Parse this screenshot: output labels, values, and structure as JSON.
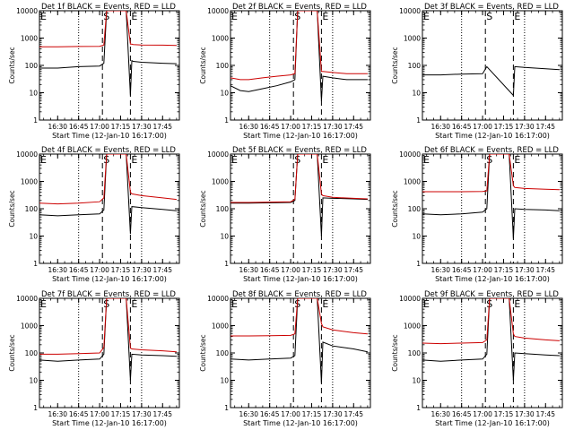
{
  "chart_data": [
    {
      "type": "line",
      "title": "Det 1f BLACK = Events, RED = LLD",
      "ylabel": "Counts/sec",
      "xlabel": "Start Time (12-Jan-10 16:17:00)",
      "xticks": [
        "16:30",
        "16:45",
        "17:00",
        "17:15",
        "17:30",
        "17:45"
      ],
      "yticks": [
        "1",
        "10",
        "100",
        "1000",
        "10000"
      ],
      "ylim": [
        1,
        10000
      ],
      "y_scale": "log",
      "grid": "dotted vertical at 16:45 and 17:30",
      "markers": [
        {
          "label": "E",
          "x": "16:17"
        },
        {
          "label": "S",
          "x": "17:02"
        },
        {
          "label": "E",
          "x": "17:22"
        }
      ],
      "series": [
        {
          "color": "#000000",
          "x": [
            "16:17",
            "16:30",
            "16:45",
            "17:00",
            "17:03",
            "17:05",
            "17:15",
            "17:19",
            "17:22",
            "17:23",
            "17:24",
            "17:30",
            "17:45",
            "17:55"
          ],
          "values": [
            80,
            80,
            90,
            95,
            120,
            10000,
            10000,
            10000,
            8,
            150,
            140,
            130,
            120,
            115
          ]
        },
        {
          "color": "#cc0000",
          "x": [
            "16:17",
            "16:30",
            "16:45",
            "17:00",
            "17:03",
            "17:05",
            "17:15",
            "17:19",
            "17:22",
            "17:23",
            "17:24",
            "17:30",
            "17:45",
            "17:55"
          ],
          "values": [
            480,
            480,
            490,
            500,
            560,
            10000,
            10000,
            10000,
            600,
            600,
            580,
            560,
            550,
            540
          ]
        }
      ]
    },
    {
      "type": "line",
      "title": "Det 2f BLACK = Events, RED = LLD",
      "ylabel": "Counts/sec",
      "xlabel": "Start Time (12-Jan-10 16:17:00)",
      "xticks": [
        "16:30",
        "16:45",
        "17:00",
        "17:15",
        "17:30",
        "17:45"
      ],
      "yticks": [
        "1",
        "10",
        "100",
        "1000",
        "10000"
      ],
      "ylim": [
        1,
        10000
      ],
      "y_scale": "log",
      "grid": "dotted vertical at 16:45 and 17:30",
      "markers": [
        {
          "label": "E",
          "x": "16:17"
        },
        {
          "label": "S",
          "x": "17:02"
        },
        {
          "label": "E",
          "x": "17:22"
        }
      ],
      "series": [
        {
          "color": "#000000",
          "x": [
            "16:17",
            "16:24",
            "16:30",
            "16:40",
            "16:50",
            "17:00",
            "17:03",
            "17:05",
            "17:15",
            "17:19",
            "17:22",
            "17:23",
            "17:30",
            "17:40",
            "17:55"
          ],
          "values": [
            18,
            12,
            11,
            14,
            18,
            25,
            30,
            10000,
            10000,
            10000,
            5,
            40,
            35,
            30,
            30
          ]
        },
        {
          "color": "#cc0000",
          "x": [
            "16:17",
            "16:24",
            "16:30",
            "16:40",
            "16:50",
            "17:00",
            "17:03",
            "17:05",
            "17:15",
            "17:19",
            "17:22",
            "17:23",
            "17:30",
            "17:40",
            "17:55"
          ],
          "values": [
            35,
            30,
            30,
            35,
            40,
            45,
            50,
            10000,
            10000,
            10000,
            60,
            60,
            55,
            50,
            50
          ]
        }
      ]
    },
    {
      "type": "line",
      "title": "Det 3f BLACK = Events, RED = LLD",
      "ylabel": "Counts/sec",
      "xlabel": "Start Time (12-Jan-10 16:17:00)",
      "xticks": [
        "16:30",
        "16:45",
        "17:00",
        "17:15",
        "17:30",
        "17:45"
      ],
      "yticks": [
        "1",
        "10",
        "100",
        "1000",
        "10000"
      ],
      "ylim": [
        1,
        10000
      ],
      "y_scale": "log",
      "grid": "dotted vertical at 16:45 and 17:30",
      "markers": [
        {
          "label": "E",
          "x": "16:17"
        },
        {
          "label": "S",
          "x": "17:02"
        },
        {
          "label": "E",
          "x": "17:22"
        }
      ],
      "series": [
        {
          "color": "#000000",
          "x": [
            "16:17",
            "16:30",
            "16:45",
            "17:00",
            "17:03",
            "17:22",
            "17:23",
            "17:30",
            "17:45",
            "17:55"
          ],
          "values": [
            45,
            45,
            48,
            50,
            90,
            8,
            90,
            85,
            75,
            70
          ]
        }
      ]
    },
    {
      "type": "line",
      "title": "Det 4f BLACK = Events, RED = LLD",
      "ylabel": "Counts/sec",
      "xlabel": "Start Time (12-Jan-10 16:17:00)",
      "xticks": [
        "16:30",
        "16:45",
        "17:00",
        "17:15",
        "17:30",
        "17:45"
      ],
      "yticks": [
        "1",
        "10",
        "100",
        "1000",
        "10000"
      ],
      "ylim": [
        1,
        10000
      ],
      "y_scale": "log",
      "grid": "dotted vertical at 16:45 and 17:30",
      "markers": [
        {
          "label": "E",
          "x": "16:17"
        },
        {
          "label": "S",
          "x": "17:02"
        },
        {
          "label": "E",
          "x": "17:22"
        }
      ],
      "series": [
        {
          "color": "#000000",
          "x": [
            "16:17",
            "16:30",
            "16:45",
            "17:00",
            "17:03",
            "17:05",
            "17:15",
            "17:19",
            "17:22",
            "17:23",
            "17:30",
            "17:45",
            "17:55"
          ],
          "values": [
            60,
            55,
            60,
            65,
            90,
            10000,
            10000,
            10000,
            12,
            120,
            110,
            95,
            85
          ]
        },
        {
          "color": "#cc0000",
          "x": [
            "16:17",
            "16:30",
            "16:45",
            "17:00",
            "17:03",
            "17:05",
            "17:15",
            "17:19",
            "17:22",
            "17:23",
            "17:30",
            "17:45",
            "17:55"
          ],
          "values": [
            160,
            150,
            160,
            180,
            250,
            10000,
            10000,
            10000,
            400,
            350,
            300,
            250,
            220
          ]
        }
      ]
    },
    {
      "type": "line",
      "title": "Det 5f BLACK = Events, RED = LLD",
      "ylabel": "Counts/sec",
      "xlabel": "Start Time (12-Jan-10 16:17:00)",
      "xticks": [
        "16:30",
        "16:45",
        "17:00",
        "17:15",
        "17:30",
        "17:45"
      ],
      "yticks": [
        "1",
        "10",
        "100",
        "1000",
        "10000"
      ],
      "ylim": [
        1,
        10000
      ],
      "y_scale": "log",
      "grid": "dotted vertical at 16:45 and 17:30",
      "markers": [
        {
          "label": "E",
          "x": "16:17"
        },
        {
          "label": "S",
          "x": "17:02"
        },
        {
          "label": "E",
          "x": "17:22"
        }
      ],
      "series": [
        {
          "color": "#000000",
          "x": [
            "16:17",
            "16:30",
            "16:45",
            "17:00",
            "17:03",
            "17:05",
            "17:15",
            "17:19",
            "17:22",
            "17:23",
            "17:30",
            "17:45",
            "17:55"
          ],
          "values": [
            160,
            160,
            165,
            170,
            200,
            10000,
            10000,
            10000,
            10,
            250,
            240,
            230,
            220
          ]
        },
        {
          "color": "#cc0000",
          "x": [
            "16:17",
            "16:30",
            "16:45",
            "17:00",
            "17:03",
            "17:05",
            "17:15",
            "17:19",
            "17:22",
            "17:23",
            "17:30",
            "17:45",
            "17:55"
          ],
          "values": [
            170,
            170,
            175,
            180,
            220,
            10000,
            10000,
            10000,
            350,
            300,
            260,
            240,
            230
          ]
        }
      ]
    },
    {
      "type": "line",
      "title": "Det 6f BLACK = Events, RED = LLD",
      "ylabel": "Counts/sec",
      "xlabel": "Start Time (12-Jan-10 16:17:00)",
      "xticks": [
        "16:30",
        "16:45",
        "17:00",
        "17:15",
        "17:30",
        "17:45"
      ],
      "yticks": [
        "1",
        "10",
        "100",
        "1000",
        "10000"
      ],
      "ylim": [
        1,
        10000
      ],
      "y_scale": "log",
      "grid": "dotted vertical at 16:45 and 17:30",
      "markers": [
        {
          "label": "E",
          "x": "16:17"
        },
        {
          "label": "S",
          "x": "17:02"
        },
        {
          "label": "E",
          "x": "17:22"
        }
      ],
      "series": [
        {
          "color": "#000000",
          "x": [
            "16:17",
            "16:30",
            "16:45",
            "17:00",
            "17:03",
            "17:05",
            "17:15",
            "17:19",
            "17:22",
            "17:23",
            "17:30",
            "17:45",
            "17:55"
          ],
          "values": [
            65,
            60,
            65,
            75,
            100,
            10000,
            10000,
            10000,
            8,
            100,
            95,
            90,
            85
          ]
        },
        {
          "color": "#cc0000",
          "x": [
            "16:17",
            "16:30",
            "16:45",
            "17:00",
            "17:03",
            "17:05",
            "17:15",
            "17:19",
            "17:22",
            "17:23",
            "17:30",
            "17:45",
            "17:55"
          ],
          "values": [
            420,
            420,
            420,
            430,
            450,
            10000,
            10000,
            10000,
            700,
            600,
            550,
            520,
            500
          ]
        }
      ]
    },
    {
      "type": "line",
      "title": "Det 7f BLACK = Events, RED = LLD",
      "ylabel": "Counts/sec",
      "xlabel": "Start Time (12-Jan-10 16:17:00)",
      "xticks": [
        "16:30",
        "16:45",
        "17:00",
        "17:15",
        "17:30",
        "17:45"
      ],
      "yticks": [
        "1",
        "10",
        "100",
        "1000",
        "10000"
      ],
      "ylim": [
        1,
        10000
      ],
      "y_scale": "log",
      "grid": "dotted vertical at 16:45 and 17:30",
      "markers": [
        {
          "label": "E",
          "x": "16:17"
        },
        {
          "label": "S",
          "x": "17:02"
        },
        {
          "label": "E",
          "x": "17:22"
        }
      ],
      "series": [
        {
          "color": "#000000",
          "x": [
            "16:17",
            "16:30",
            "16:45",
            "17:00",
            "17:03",
            "17:05",
            "17:15",
            "17:19",
            "17:22",
            "17:23",
            "17:30",
            "17:45",
            "17:55"
          ],
          "values": [
            55,
            50,
            55,
            60,
            90,
            10000,
            10000,
            10000,
            10,
            90,
            85,
            80,
            75
          ]
        },
        {
          "color": "#cc0000",
          "x": [
            "16:17",
            "16:30",
            "16:45",
            "17:00",
            "17:03",
            "17:05",
            "17:15",
            "17:19",
            "17:22",
            "17:23",
            "17:30",
            "17:45",
            "17:55"
          ],
          "values": [
            90,
            90,
            95,
            100,
            160,
            10000,
            10000,
            10000,
            150,
            140,
            130,
            120,
            110
          ]
        }
      ]
    },
    {
      "type": "line",
      "title": "Det 8f BLACK = Events, RED = LLD",
      "ylabel": "Counts/sec",
      "xlabel": "Start Time (12-Jan-10 16:17:00)",
      "xticks": [
        "16:30",
        "16:45",
        "17:00",
        "17:15",
        "17:30",
        "17:45"
      ],
      "yticks": [
        "1",
        "10",
        "100",
        "1000",
        "10000"
      ],
      "ylim": [
        1,
        10000
      ],
      "y_scale": "log",
      "grid": "dotted vertical at 16:45 and 17:30",
      "markers": [
        {
          "label": "E",
          "x": "16:17"
        },
        {
          "label": "S",
          "x": "17:02"
        },
        {
          "label": "E",
          "x": "17:22"
        }
      ],
      "series": [
        {
          "color": "#000000",
          "x": [
            "16:17",
            "16:30",
            "16:45",
            "17:00",
            "17:03",
            "17:05",
            "17:15",
            "17:19",
            "17:22",
            "17:23",
            "17:30",
            "17:45",
            "17:55"
          ],
          "values": [
            60,
            55,
            60,
            65,
            80,
            10000,
            10000,
            10000,
            8,
            250,
            180,
            140,
            110
          ]
        },
        {
          "color": "#cc0000",
          "x": [
            "16:17",
            "16:30",
            "16:45",
            "17:00",
            "17:03",
            "17:05",
            "17:15",
            "17:19",
            "17:22",
            "17:23",
            "17:30",
            "17:45",
            "17:55"
          ],
          "values": [
            420,
            420,
            430,
            440,
            500,
            10000,
            10000,
            10000,
            1200,
            900,
            700,
            550,
            500
          ]
        }
      ]
    },
    {
      "type": "line",
      "title": "Det 9f BLACK = Events, RED = LLD",
      "ylabel": "Counts/sec",
      "xlabel": "Start Time (12-Jan-10 16:17:00)",
      "xticks": [
        "16:30",
        "16:45",
        "17:00",
        "17:15",
        "17:30",
        "17:45"
      ],
      "yticks": [
        "1",
        "10",
        "100",
        "1000",
        "10000"
      ],
      "ylim": [
        1,
        10000
      ],
      "y_scale": "log",
      "grid": "dotted vertical at 16:45 and 17:30",
      "markers": [
        {
          "label": "E",
          "x": "16:17"
        },
        {
          "label": "S",
          "x": "17:02"
        },
        {
          "label": "E",
          "x": "17:22"
        }
      ],
      "series": [
        {
          "color": "#000000",
          "x": [
            "16:17",
            "16:30",
            "16:45",
            "17:00",
            "17:03",
            "17:05",
            "17:15",
            "17:19",
            "17:22",
            "17:23",
            "17:30",
            "17:45",
            "17:55"
          ],
          "values": [
            55,
            50,
            55,
            60,
            90,
            10000,
            10000,
            10000,
            10,
            100,
            95,
            85,
            80
          ]
        },
        {
          "color": "#cc0000",
          "x": [
            "16:17",
            "16:30",
            "16:45",
            "17:00",
            "17:03",
            "17:05",
            "17:15",
            "17:19",
            "17:22",
            "17:23",
            "17:30",
            "17:45",
            "17:55"
          ],
          "values": [
            230,
            220,
            230,
            240,
            300,
            10000,
            10000,
            10000,
            500,
            400,
            350,
            300,
            280
          ]
        }
      ]
    }
  ]
}
